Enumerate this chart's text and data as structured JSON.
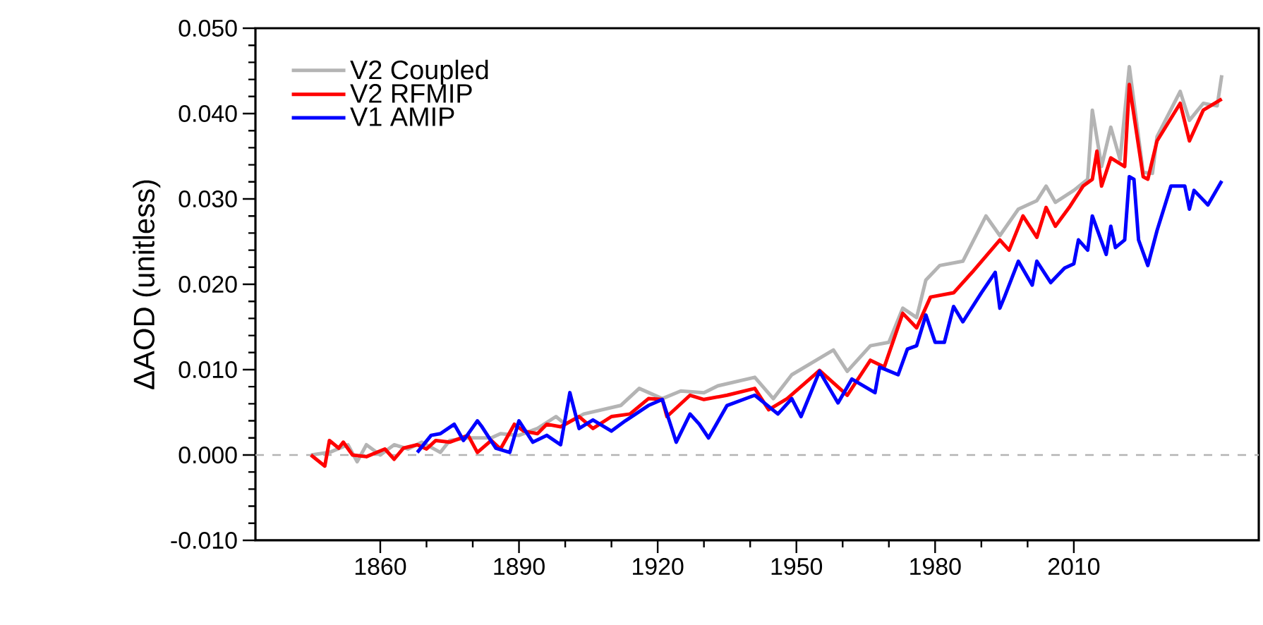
{
  "chart_data": {
    "type": "line",
    "ylabel": "ΔAOD (unitless)",
    "xlim": [
      1833,
      2050
    ],
    "ylim": [
      -0.01,
      0.05
    ],
    "xticks": [
      1860,
      1890,
      1920,
      1950,
      1980,
      2010
    ],
    "yticks": [
      {
        "value": -0.01,
        "label": "-0.010"
      },
      {
        "value": 0,
        "label": "0.000"
      },
      {
        "value": 0.01,
        "label": "0.010"
      },
      {
        "value": 0.02,
        "label": "0.020"
      },
      {
        "value": 0.03,
        "label": "0.030"
      },
      {
        "value": 0.04,
        "label": "0.040"
      },
      {
        "value": 0.05,
        "label": "0.050"
      }
    ],
    "legend": "top left",
    "grid": false,
    "ref_lines": [
      {
        "axis": "y",
        "value": 0,
        "color": "#b4b4b4",
        "line_style": "dashed"
      }
    ],
    "series": [
      {
        "name": "V2 Coupled",
        "color": "#b4b4b4",
        "x": [
          1845,
          1849,
          1853,
          1855,
          1857,
          1860,
          1863,
          1866,
          1869,
          1873,
          1875,
          1879,
          1884,
          1886,
          1890,
          1894,
          1898,
          1900,
          1904,
          1908,
          1912,
          1916,
          1921,
          1925,
          1930,
          1933,
          1941,
          1945,
          1949,
          1958,
          1961,
          1966,
          1970,
          1973,
          1976,
          1978,
          1981,
          1986,
          1991,
          1994,
          1998,
          2002,
          2004,
          2006,
          2010,
          2013,
          2014,
          2016,
          2018,
          2020,
          2022,
          2025,
          2027,
          2028,
          2033,
          2035,
          2038,
          2041,
          2042
        ],
        "values": [
          0,
          0.0003,
          0.0012,
          -0.0008,
          0.0012,
          0,
          0.0012,
          0.0007,
          0.0015,
          0.0003,
          0.0017,
          0.002,
          0.002,
          0.0025,
          0.0023,
          0.0031,
          0.0045,
          0.0036,
          0.0048,
          0.0053,
          0.0058,
          0.0078,
          0.0066,
          0.0075,
          0.0073,
          0.0081,
          0.0091,
          0.0066,
          0.0094,
          0.0123,
          0.0098,
          0.0128,
          0.0132,
          0.0172,
          0.0161,
          0.0205,
          0.0222,
          0.0227,
          0.028,
          0.0257,
          0.0288,
          0.0298,
          0.0315,
          0.0296,
          0.031,
          0.0323,
          0.0404,
          0.0338,
          0.0384,
          0.0346,
          0.0455,
          0.0331,
          0.033,
          0.0373,
          0.0426,
          0.0392,
          0.0412,
          0.0409,
          0.0445
        ]
      },
      {
        "name": "V2 RFMIP",
        "color": "#ff0000",
        "x": [
          1845,
          1848,
          1849,
          1851,
          1852,
          1854,
          1857,
          1861,
          1863,
          1865,
          1868,
          1870,
          1872,
          1875,
          1879,
          1881,
          1884,
          1886,
          1889,
          1891,
          1894,
          1896,
          1899,
          1903,
          1906,
          1910,
          1914,
          1918,
          1921,
          1922,
          1927,
          1930,
          1935,
          1941,
          1944,
          1948,
          1955,
          1961,
          1966,
          1969,
          1973,
          1976,
          1979,
          1984,
          1988,
          1994,
          1996,
          1999,
          2002,
          2004,
          2006,
          2009,
          2012,
          2014,
          2015,
          2016,
          2018,
          2021,
          2022,
          2025,
          2026,
          2028,
          2033,
          2035,
          2038,
          2042
        ],
        "values": [
          0,
          -0.0013,
          0.0017,
          0.0008,
          0.0015,
          0,
          -0.0002,
          0.0007,
          -0.0005,
          0.0008,
          0.0012,
          0.0007,
          0.0017,
          0.0015,
          0.0023,
          0.0003,
          0.0017,
          0.0007,
          0.0036,
          0.0028,
          0.0025,
          0.0036,
          0.0033,
          0.0045,
          0.0031,
          0.0045,
          0.0048,
          0.0066,
          0.0065,
          0.0045,
          0.007,
          0.0065,
          0.007,
          0.0078,
          0.0053,
          0.0066,
          0.0099,
          0.007,
          0.0111,
          0.0103,
          0.0166,
          0.0149,
          0.0185,
          0.019,
          0.0214,
          0.0252,
          0.024,
          0.028,
          0.0255,
          0.029,
          0.0268,
          0.029,
          0.0315,
          0.0323,
          0.0356,
          0.0315,
          0.0348,
          0.0338,
          0.0434,
          0.0326,
          0.0323,
          0.0368,
          0.0412,
          0.0368,
          0.0404,
          0.0417
        ]
      },
      {
        "name": "V1 AMIP",
        "color": "#0000ff",
        "x": [
          1868,
          1871,
          1873,
          1876,
          1878,
          1881,
          1882,
          1885,
          1888,
          1890,
          1893,
          1896,
          1899,
          1901,
          1903,
          1906,
          1910,
          1913,
          1918,
          1921,
          1924,
          1927,
          1929,
          1931,
          1935,
          1941,
          1946,
          1949,
          1951,
          1955,
          1959,
          1962,
          1967,
          1968,
          1972,
          1974,
          1976,
          1978,
          1980,
          1982,
          1984,
          1986,
          1990,
          1993,
          1994,
          1995,
          1998,
          2001,
          2002,
          2005,
          2008,
          2010,
          2011,
          2013,
          2014,
          2017,
          2018,
          2019,
          2021,
          2022,
          2023,
          2024,
          2026,
          2028,
          2031,
          2034,
          2035,
          2036,
          2039,
          2042
        ],
        "values": [
          0.0003,
          0.0023,
          0.0025,
          0.0036,
          0.0017,
          0.004,
          0.0033,
          0.0008,
          0.0003,
          0.004,
          0.0015,
          0.0023,
          0.0012,
          0.0073,
          0.0031,
          0.0041,
          0.0028,
          0.004,
          0.0058,
          0.0065,
          0.0015,
          0.0048,
          0.0036,
          0.002,
          0.0058,
          0.007,
          0.0048,
          0.0066,
          0.0045,
          0.0098,
          0.0061,
          0.0089,
          0.0073,
          0.0103,
          0.0094,
          0.0124,
          0.0128,
          0.0164,
          0.0132,
          0.0132,
          0.0174,
          0.0156,
          0.019,
          0.0214,
          0.0172,
          0.0185,
          0.0227,
          0.0199,
          0.0227,
          0.0202,
          0.0219,
          0.0224,
          0.0252,
          0.024,
          0.028,
          0.0235,
          0.0268,
          0.0243,
          0.0252,
          0.0326,
          0.0323,
          0.0252,
          0.0222,
          0.0263,
          0.0315,
          0.0315,
          0.0288,
          0.031,
          0.0293,
          0.0321
        ]
      }
    ]
  }
}
